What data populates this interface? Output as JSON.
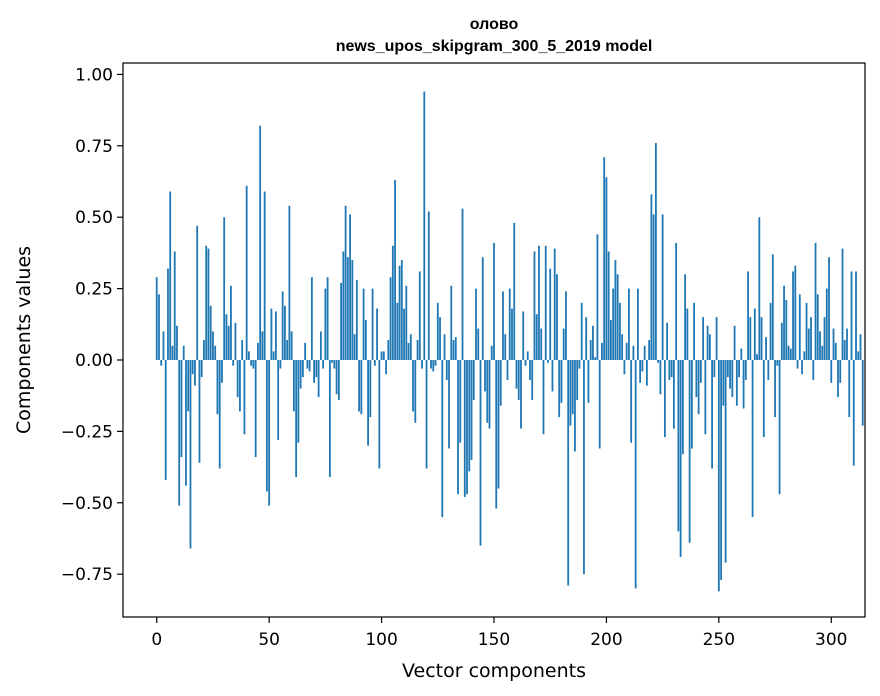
{
  "chart_data": {
    "type": "bar",
    "title": "олово",
    "subtitle": "news_upos_skipgram_300_5_2019 model",
    "xlabel": "Vector components",
    "ylabel": "Components values",
    "xlim": [
      -15,
      315
    ],
    "ylim": [
      -0.9,
      1.04
    ],
    "xticks": [
      0,
      50,
      100,
      150,
      200,
      250,
      300
    ],
    "yticks": [
      -0.75,
      -0.5,
      -0.25,
      0.0,
      0.25,
      0.5,
      0.75,
      1.0
    ],
    "xtick_labels": [
      "0",
      "50",
      "100",
      "150",
      "200",
      "250",
      "300"
    ],
    "ytick_labels": [
      "−0.75",
      "−0.50",
      "−0.25",
      "0.00",
      "0.25",
      "0.50",
      "0.75",
      "1.00"
    ],
    "bar_color": "#1f77b4",
    "values": [
      0.29,
      0.23,
      -0.02,
      0.1,
      -0.42,
      0.32,
      0.59,
      0.05,
      0.38,
      0.12,
      -0.51,
      -0.34,
      0.05,
      -0.44,
      -0.18,
      -0.66,
      -0.05,
      -0.09,
      0.47,
      -0.36,
      -0.06,
      0.07,
      0.4,
      0.39,
      0.19,
      0.1,
      0.05,
      -0.19,
      -0.38,
      -0.08,
      0.5,
      0.16,
      0.12,
      0.26,
      -0.02,
      0.13,
      -0.13,
      -0.18,
      0.07,
      -0.26,
      0.61,
      0.03,
      -0.02,
      -0.03,
      -0.34,
      0.06,
      0.82,
      0.1,
      0.59,
      -0.46,
      -0.51,
      0.18,
      0.03,
      0.17,
      -0.28,
      -0.03,
      0.24,
      0.19,
      0.07,
      0.54,
      0.1,
      -0.18,
      -0.41,
      -0.29,
      -0.1,
      -0.06,
      0.06,
      -0.03,
      -0.04,
      0.29,
      -0.08,
      -0.06,
      -0.13,
      0.1,
      -0.03,
      0.25,
      0.29,
      -0.41,
      -0.01,
      -0.03,
      -0.12,
      -0.14,
      0.27,
      0.38,
      0.54,
      0.36,
      0.51,
      0.35,
      0.09,
      0.28,
      -0.18,
      -0.19,
      0.25,
      0.14,
      -0.3,
      -0.2,
      0.25,
      -0.02,
      0.18,
      -0.38,
      0.03,
      0.03,
      -0.05,
      0.07,
      0.29,
      0.4,
      0.63,
      0.2,
      0.33,
      0.35,
      0.18,
      0.26,
      0.06,
      0.09,
      -0.18,
      -0.22,
      0.07,
      0.31,
      -0.03,
      0.94,
      -0.38,
      0.52,
      -0.03,
      -0.04,
      -0.02,
      0.2,
      0.15,
      -0.55,
      0.09,
      -0.07,
      -0.31,
      0.26,
      0.07,
      0.08,
      -0.47,
      -0.29,
      0.53,
      -0.48,
      -0.47,
      -0.39,
      -0.35,
      -0.14,
      0.25,
      0.11,
      -0.65,
      0.36,
      -0.11,
      -0.22,
      -0.24,
      0.05,
      0.41,
      -0.52,
      -0.45,
      -0.16,
      0.24,
      0.09,
      -0.07,
      0.25,
      0.18,
      0.48,
      -0.1,
      -0.14,
      -0.24,
      0.17,
      -0.02,
      0.03,
      -0.07,
      -0.14,
      0.38,
      0.16,
      0.4,
      0.11,
      -0.26,
      0.4,
      -0.01,
      0.32,
      -0.11,
      0.39,
      0.3,
      -0.2,
      -0.15,
      0.11,
      0.24,
      -0.79,
      -0.23,
      -0.19,
      -0.32,
      -0.14,
      -0.03,
      0.2,
      -0.75,
      0.15,
      -0.15,
      0.07,
      0.12,
      0.01,
      0.44,
      -0.31,
      0.06,
      0.71,
      0.64,
      0.38,
      0.14,
      0.25,
      0.35,
      0.3,
      0.2,
      0.09,
      -0.05,
      0.06,
      0.25,
      -0.29,
      0.05,
      -0.8,
      0.25,
      -0.08,
      -0.04,
      0.05,
      -0.09,
      0.07,
      0.58,
      0.51,
      0.76,
      -0.01,
      -0.12,
      0.51,
      -0.27,
      0.13,
      -0.07,
      -0.06,
      -0.24,
      0.41,
      -0.6,
      -0.69,
      -0.33,
      0.3,
      0.18,
      -0.64,
      -0.31,
      0.2,
      -0.13,
      -0.19,
      -0.08,
      0.15,
      -0.26,
      0.12,
      0.09,
      -0.38,
      -0.06,
      0.15,
      -0.81,
      -0.77,
      -0.16,
      -0.71,
      -0.06,
      -0.1,
      -0.13,
      0.12,
      -0.16,
      -0.06,
      0.04,
      -0.17,
      -0.07,
      0.31,
      0.15,
      -0.55,
      0.18,
      0.02,
      0.5,
      0.15,
      -0.27,
      0.08,
      -0.07,
      0.2,
      0.37,
      -0.2,
      -0.02,
      -0.47,
      0.13,
      0.26,
      0.21,
      0.05,
      0.04,
      0.31,
      0.33,
      -0.03,
      0.23,
      -0.05,
      0.03,
      0.2,
      0.11,
      0.15,
      -0.07,
      0.41,
      0.23,
      0.1,
      0.05,
      0.15,
      0.25,
      0.36,
      -0.08,
      0.11,
      0.06,
      -0.13,
      -0.08,
      0.39,
      0.07,
      0.11,
      -0.2,
      0.31,
      -0.37,
      0.31,
      0.03,
      0.09,
      -0.23
    ]
  }
}
